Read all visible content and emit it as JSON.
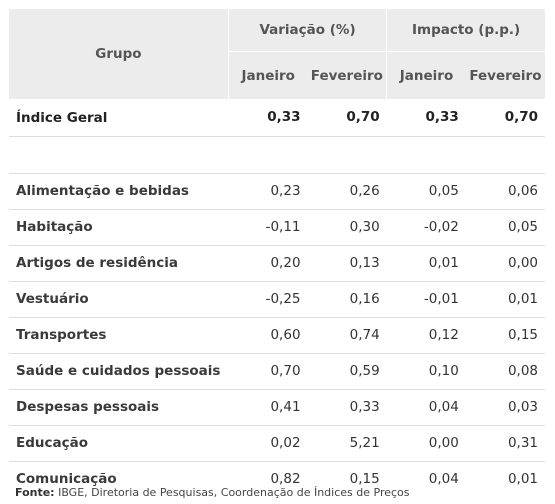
{
  "table": {
    "header": {
      "group": "Grupo",
      "variation": "Variação (%)",
      "impact": "Impacto (p.p.)",
      "jan": "Janeiro",
      "feb": "Fevereiro"
    },
    "index_row": {
      "group": "Índice Geral",
      "var_jan": "0,33",
      "var_feb": "0,70",
      "imp_jan": "0,33",
      "imp_feb": "0,70"
    },
    "rows": [
      {
        "group": "Alimentação e bebidas",
        "var_jan": "0,23",
        "var_feb": "0,26",
        "imp_jan": "0,05",
        "imp_feb": "0,06"
      },
      {
        "group": "Habitação",
        "var_jan": "-0,11",
        "var_feb": "0,30",
        "imp_jan": "-0,02",
        "imp_feb": "0,05"
      },
      {
        "group": "Artigos de residência",
        "var_jan": "0,20",
        "var_feb": "0,13",
        "imp_jan": "0,01",
        "imp_feb": "0,00"
      },
      {
        "group": "Vestuário",
        "var_jan": "-0,25",
        "var_feb": "0,16",
        "imp_jan": "-0,01",
        "imp_feb": "0,01"
      },
      {
        "group": "Transportes",
        "var_jan": "0,60",
        "var_feb": "0,74",
        "imp_jan": "0,12",
        "imp_feb": "0,15"
      },
      {
        "group": "Saúde e cuidados pessoais",
        "var_jan": "0,70",
        "var_feb": "0,59",
        "imp_jan": "0,10",
        "imp_feb": "0,08"
      },
      {
        "group": "Despesas pessoais",
        "var_jan": "0,41",
        "var_feb": "0,33",
        "imp_jan": "0,04",
        "imp_feb": "0,03"
      },
      {
        "group": "Educação",
        "var_jan": "0,02",
        "var_feb": "5,21",
        "imp_jan": "0,00",
        "imp_feb": "0,31"
      },
      {
        "group": "Comunicação",
        "var_jan": "0,82",
        "var_feb": "0,15",
        "imp_jan": "0,04",
        "imp_feb": "0,01"
      }
    ]
  },
  "source": {
    "label": "Fonte:",
    "text": " IBGE, Diretoria de Pesquisas, Coordenação de Índices de Preços"
  }
}
